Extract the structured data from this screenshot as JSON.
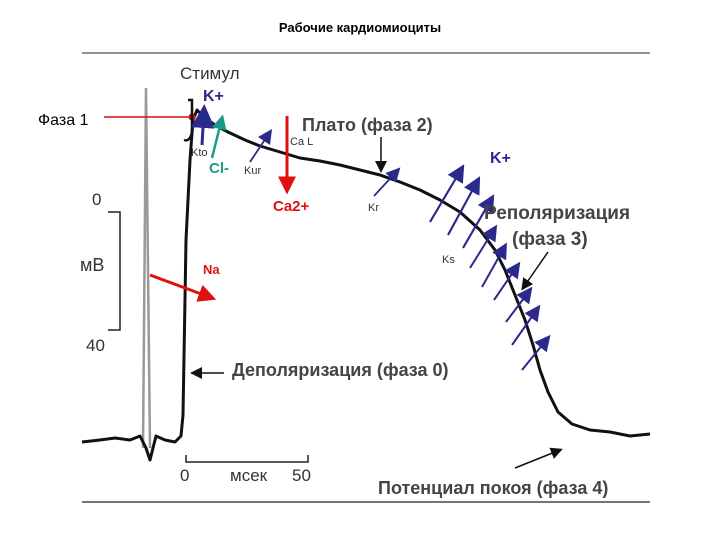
{
  "title": "Рабочие кардиомиоциты",
  "labels": {
    "stimulus": "Стимул",
    "phase1": "Фаза 1",
    "k_top": "K+",
    "kto": "Kto",
    "cl": "Cl-",
    "kur": "Kur",
    "cal": "Ca L",
    "ca2": "Ca2+",
    "plateau": "Плато (фаза 2)",
    "k_right": "K+",
    "kr": "Kr",
    "repol_line1": "Реполяризация",
    "repol_line2": "(фаза 3)",
    "ks": "Ks",
    "na": "Na",
    "zero": "0",
    "mv": "мВ",
    "minus40": "40",
    "depol": "Деполяризация (фаза 0)",
    "x_zero": "0",
    "msec": "мсек",
    "x_fifty": "50",
    "rest": "Потенциал покоя (фаза 4)"
  },
  "colors": {
    "trace": "#111111",
    "k_arrows": "#2b2a8c",
    "cl_arrow": "#1a9a8a",
    "ca_arrow": "#e01010",
    "na_arrow": "#e01010",
    "phase1_line": "#d01010"
  }
}
